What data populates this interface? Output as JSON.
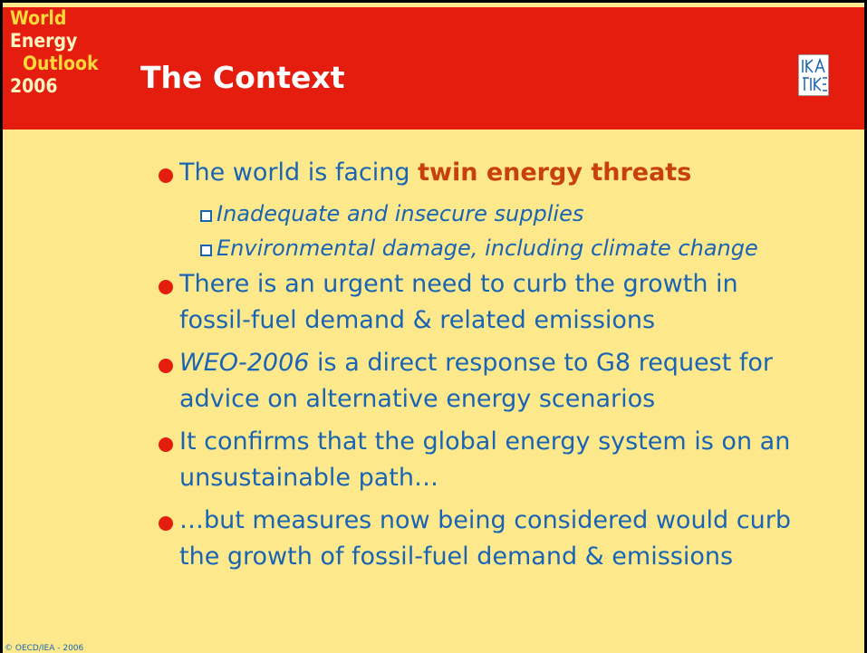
{
  "logo": {
    "lines": [
      "World",
      "Energy",
      "Outlook",
      "2006"
    ]
  },
  "title": "The Context",
  "bullets": [
    {
      "level": 1,
      "lines": [
        [
          {
            "text": "The world is facing ",
            "style": "normal"
          },
          {
            "text": "twin energy threats",
            "style": "bold"
          }
        ]
      ]
    },
    {
      "level": 2,
      "lines": [
        [
          {
            "text": "Inadequate and insecure supplies",
            "style": "italic"
          }
        ]
      ]
    },
    {
      "level": 2,
      "lines": [
        [
          {
            "text": "Environmental damage, including climate change",
            "style": "italic"
          }
        ]
      ]
    },
    {
      "level": 1,
      "lines": [
        [
          {
            "text": "There is an urgent need to curb the growth in",
            "style": "normal"
          }
        ],
        [
          {
            "text": "fossil-fuel demand & related emissions",
            "style": "normal"
          }
        ]
      ]
    },
    {
      "level": 1,
      "lines": [
        [
          {
            "text": "WEO-2006",
            "style": "italic"
          },
          {
            "text": " is a direct response to G8 request for",
            "style": "normal"
          }
        ],
        [
          {
            "text": "advice on alternative energy scenarios",
            "style": "normal"
          }
        ]
      ]
    },
    {
      "level": 1,
      "lines": [
        [
          {
            "text": "It confirms that the global energy system is on an",
            "style": "normal"
          }
        ],
        [
          {
            "text": "unsustainable path…",
            "style": "normal"
          }
        ]
      ]
    },
    {
      "level": 1,
      "lines": [
        [
          {
            "text": "…but measures now being considered would curb",
            "style": "normal"
          }
        ],
        [
          {
            "text": "the growth of fossil-fuel demand & emissions",
            "style": "normal"
          }
        ]
      ]
    }
  ],
  "footer": "© OECD/IEA - 2006"
}
